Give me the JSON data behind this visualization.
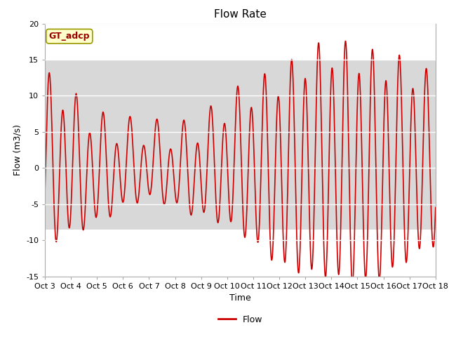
{
  "title": "Flow Rate",
  "xlabel": "Time",
  "ylabel": "Flow (m3/s)",
  "ylim": [
    -15,
    20
  ],
  "xlim": [
    0,
    15
  ],
  "yticks": [
    -15,
    -10,
    -5,
    0,
    5,
    10,
    15,
    20
  ],
  "xtick_labels": [
    "Oct 3",
    "Oct 4",
    "Oct 5",
    "Oct 6",
    "Oct 7",
    "Oct 8",
    "Oct 9",
    "Oct 10",
    "Oct 11",
    "Oct 12",
    "Oct 13",
    "Oct 14",
    "Oct 15",
    "Oct 16",
    "Oct 17",
    "Oct 18"
  ],
  "line_color": "#cc0000",
  "line_width": 1.2,
  "plot_bg_color": "#ffffff",
  "fig_bg_color": "#ffffff",
  "gt_adcp_label": "GT_adcp",
  "gt_adcp_bg": "#ffffcc",
  "gt_adcp_border": "#999900",
  "gt_adcp_text_color": "#990000",
  "legend_label": "Flow",
  "shade_color": "#dddddd",
  "grid_color": "#dddddd",
  "title_fontsize": 11,
  "axis_label_fontsize": 9,
  "tick_fontsize": 8
}
